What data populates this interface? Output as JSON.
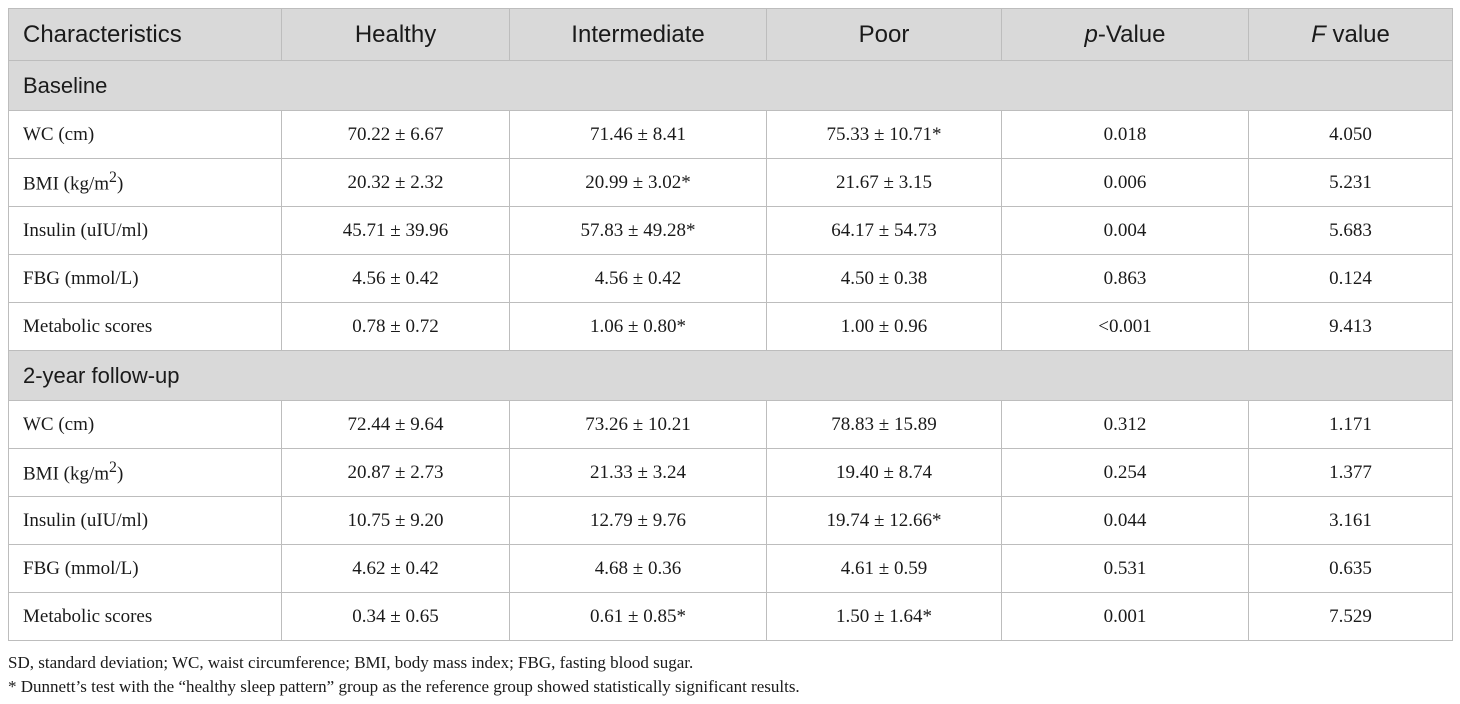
{
  "table": {
    "headers": [
      "Characteristics",
      "Healthy",
      "Intermediate",
      "Poor",
      "-Value",
      "value"
    ],
    "header_italic_prefix": {
      "p_value": "p",
      "f_value": "F"
    },
    "sections": [
      {
        "title": "Baseline",
        "rows": [
          {
            "label": "WC (cm)",
            "healthy": "70.22 ± 6.67",
            "intermediate": "71.46 ± 8.41",
            "poor": "75.33 ± 10.71*",
            "p": "0.018",
            "f": "4.050"
          },
          {
            "label": "BMI (kg/m",
            "label_sup": "2",
            "label_end": ")",
            "healthy": "20.32 ± 2.32",
            "intermediate": "20.99 ± 3.02*",
            "poor": "21.67 ± 3.15",
            "p": "0.006",
            "f": "5.231"
          },
          {
            "label": "Insulin (uIU/ml)",
            "healthy": "45.71 ± 39.96",
            "intermediate": "57.83 ± 49.28*",
            "poor": "64.17 ± 54.73",
            "p": "0.004",
            "f": "5.683"
          },
          {
            "label": "FBG (mmol/L)",
            "healthy": "4.56 ± 0.42",
            "intermediate": "4.56 ± 0.42",
            "poor": "4.50 ± 0.38",
            "p": "0.863",
            "f": "0.124"
          },
          {
            "label": "Metabolic scores",
            "healthy": "0.78 ± 0.72",
            "intermediate": "1.06 ± 0.80*",
            "poor": "1.00 ± 0.96",
            "p": "<0.001",
            "f": "9.413"
          }
        ]
      },
      {
        "title": "2-year follow-up",
        "rows": [
          {
            "label": "WC (cm)",
            "healthy": "72.44 ± 9.64",
            "intermediate": "73.26 ± 10.21",
            "poor": "78.83 ± 15.89",
            "p": "0.312",
            "f": "1.171"
          },
          {
            "label": "BMI (kg/m",
            "label_sup": "2",
            "label_end": ")",
            "healthy": "20.87 ± 2.73",
            "intermediate": "21.33 ± 3.24",
            "poor": "19.40 ± 8.74",
            "p": "0.254",
            "f": "1.377"
          },
          {
            "label": "Insulin (uIU/ml)",
            "healthy": "10.75 ± 9.20",
            "intermediate": "12.79 ± 9.76",
            "poor": "19.74 ± 12.66*",
            "p": "0.044",
            "f": "3.161"
          },
          {
            "label": "FBG (mmol/L)",
            "healthy": "4.62 ± 0.42",
            "intermediate": "4.68 ± 0.36",
            "poor": "4.61 ± 0.59",
            "p": "0.531",
            "f": "0.635"
          },
          {
            "label": "Metabolic scores",
            "healthy": "0.34 ± 0.65",
            "intermediate": "0.61 ± 0.85*",
            "poor": "1.50 ± 1.64*",
            "p": "0.001",
            "f": "7.529"
          }
        ]
      }
    ]
  },
  "notes": {
    "abbreviations": "SD, standard deviation; WC, waist circumference; BMI, body mass index; FBG, fasting blood sugar.",
    "footnote": "* Dunnett’s test with the “healthy sleep pattern” group as the reference group showed statistically significant results."
  },
  "colors": {
    "header_bg": "#d9d9d9",
    "border": "#bdbdbd",
    "text": "#1a1a1a"
  }
}
